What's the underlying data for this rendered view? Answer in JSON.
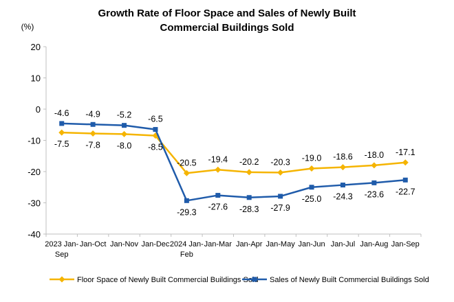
{
  "chart_data": {
    "type": "line",
    "title_lines": [
      "Growth Rate of Floor Space and Sales of Newly Built",
      "Commercial Buildings Sold"
    ],
    "unit": "(%)",
    "ylim": [
      -40,
      20
    ],
    "yticks": [
      20,
      10,
      0,
      -10,
      -20,
      -30,
      -40
    ],
    "grid": false,
    "legend_position": "bottom",
    "categories": [
      [
        "2023 Jan-",
        "Sep"
      ],
      [
        "Jan-Oct"
      ],
      [
        "Jan-Nov"
      ],
      [
        "Jan-Dec"
      ],
      [
        "2024 Jan-",
        "Feb"
      ],
      [
        "Jan-Mar"
      ],
      [
        "Jan-Apr"
      ],
      [
        "Jan-May"
      ],
      [
        "Jan-Jun"
      ],
      [
        "Jan-Jul"
      ],
      [
        "Jan-Aug"
      ],
      [
        "Jan-Sep"
      ]
    ],
    "series": [
      {
        "name": "Floor Space of Newly Built Commercial Buildings Sold",
        "color": "#F5B400",
        "marker": "diamond",
        "label_position": [
          "below",
          "below",
          "below",
          "below",
          "above",
          "above",
          "above",
          "above",
          "above",
          "above",
          "above",
          "above"
        ],
        "values": [
          -7.5,
          -7.8,
          -8.0,
          -8.5,
          -20.5,
          -19.4,
          -20.2,
          -20.3,
          -19.0,
          -18.6,
          -18.0,
          -17.1
        ],
        "labels": [
          "-7.5",
          "-7.8",
          "-8.0",
          "-8.5",
          "-20.5",
          "-19.4",
          "-20.2",
          "-20.3",
          "-19.0",
          "-18.6",
          "-18.0",
          "-17.1"
        ]
      },
      {
        "name": "Sales of Newly Built Commercial Buildings Sold",
        "color": "#1F5BAA",
        "marker": "square",
        "label_position": [
          "above",
          "above",
          "above",
          "above",
          "below",
          "below",
          "below",
          "below",
          "below",
          "below",
          "below",
          "below"
        ],
        "values": [
          -4.6,
          -4.9,
          -5.2,
          -6.5,
          -29.3,
          -27.6,
          -28.3,
          -27.9,
          -25.0,
          -24.3,
          -23.6,
          -22.7
        ],
        "labels": [
          "-4.6",
          "-4.9",
          "-5.2",
          "-6.5",
          "-29.3",
          "-27.6",
          "-28.3",
          "-27.9",
          "-25.0",
          "-24.3",
          "-23.6",
          "-22.7"
        ]
      }
    ]
  }
}
